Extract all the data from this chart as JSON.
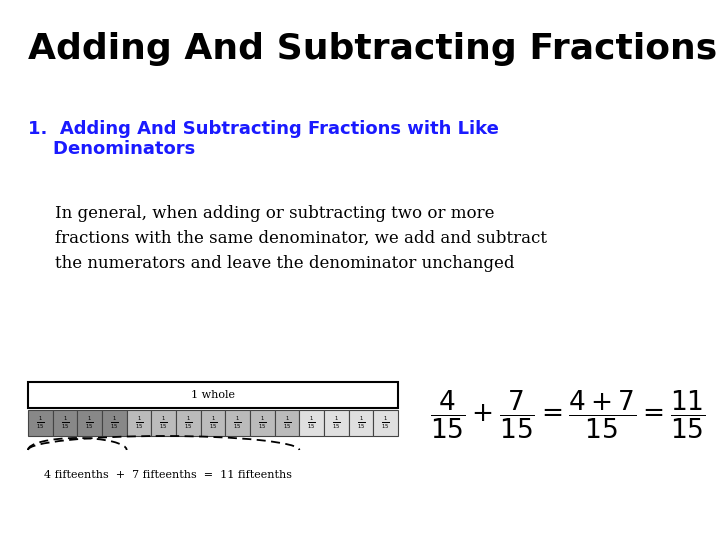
{
  "title": "Adding And Subtracting Fractions",
  "subtitle_line1": "1.  Adding And Subtracting Fractions with Like",
  "subtitle_line2": "    Denominators",
  "body_text": "In general, when adding or subtracting two or more\nfractions with the same denominator, we add and subtract\nthe numerators and leave the denominator unchanged",
  "caption": "4 fifteenths  +  7 fifteenths  =  11 fifteenths",
  "bg_color": "#ffffff",
  "title_color": "#000000",
  "subtitle_color": "#1a1aff",
  "body_color": "#000000",
  "n_cells": 15,
  "dark_cells": 4,
  "medium_cells": 7,
  "light_cells": 4,
  "dark_color": "#888888",
  "medium_color": "#bbbbbb",
  "light_color": "#e0e0e0",
  "cell_border_color": "#444444",
  "whole_box_color": "#000000"
}
